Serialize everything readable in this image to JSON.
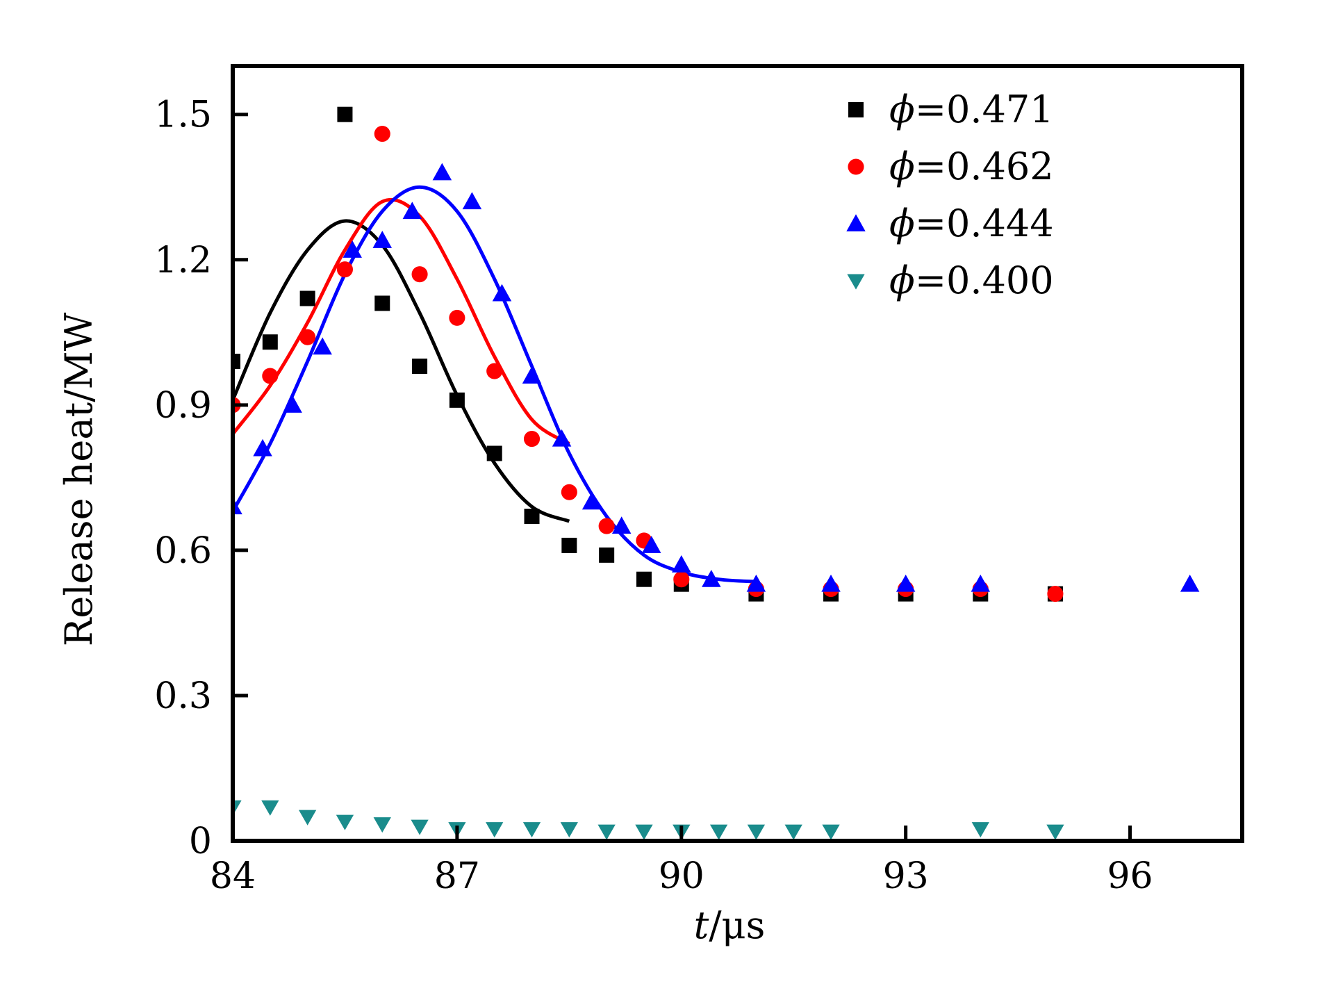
{
  "chart_data": {
    "type": "scatter",
    "xlabel_italic": "t",
    "xlabel_rest": "/μs",
    "ylabel": "Release heat/MW",
    "xlim": [
      84,
      97.5
    ],
    "ylim": [
      0,
      1.6
    ],
    "xticks": [
      84,
      87,
      90,
      93,
      96
    ],
    "xtick_labels": [
      "84",
      "87",
      "90",
      "93",
      "96"
    ],
    "yticks": [
      0,
      0.3,
      0.6,
      0.9,
      1.2,
      1.5
    ],
    "ytick_labels": [
      "0",
      "0.3",
      "0.6",
      "0.9",
      "1.2",
      "1.5"
    ],
    "grid": false,
    "legend_position": "top-right",
    "series": [
      {
        "name": "ϕ=0.471",
        "legend_symbol": "ϕ",
        "legend_value": "=0.471",
        "color": "#000000",
        "marker": "square",
        "points": [
          [
            84.0,
            0.99
          ],
          [
            84.5,
            1.03
          ],
          [
            85.0,
            1.12
          ],
          [
            85.5,
            1.5
          ],
          [
            86.0,
            1.11
          ],
          [
            86.5,
            0.98
          ],
          [
            87.0,
            0.91
          ],
          [
            87.5,
            0.8
          ],
          [
            88.0,
            0.67
          ],
          [
            88.5,
            0.61
          ],
          [
            89.0,
            0.59
          ],
          [
            89.5,
            0.54
          ],
          [
            90.0,
            0.53
          ],
          [
            91.0,
            0.51
          ],
          [
            92.0,
            0.51
          ],
          [
            93.0,
            0.51
          ],
          [
            94.0,
            0.51
          ],
          [
            95.0,
            0.51
          ]
        ],
        "fit": [
          [
            84.0,
            0.91
          ],
          [
            84.5,
            1.09
          ],
          [
            85.0,
            1.22
          ],
          [
            85.5,
            1.28
          ],
          [
            86.0,
            1.23
          ],
          [
            86.5,
            1.09
          ],
          [
            87.0,
            0.92
          ],
          [
            87.5,
            0.78
          ],
          [
            88.0,
            0.69
          ],
          [
            88.5,
            0.66
          ]
        ]
      },
      {
        "name": "ϕ=0.462",
        "legend_symbol": "ϕ",
        "legend_value": "=0.462",
        "color": "#ff0000",
        "marker": "circle",
        "points": [
          [
            84.0,
            0.9
          ],
          [
            84.5,
            0.96
          ],
          [
            85.0,
            1.04
          ],
          [
            85.5,
            1.18
          ],
          [
            86.0,
            1.46
          ],
          [
            86.5,
            1.17
          ],
          [
            87.0,
            1.08
          ],
          [
            87.5,
            0.97
          ],
          [
            88.0,
            0.83
          ],
          [
            88.5,
            0.72
          ],
          [
            89.0,
            0.65
          ],
          [
            89.5,
            0.62
          ],
          [
            90.0,
            0.54
          ],
          [
            91.0,
            0.52
          ],
          [
            92.0,
            0.52
          ],
          [
            93.0,
            0.52
          ],
          [
            94.0,
            0.52
          ],
          [
            95.0,
            0.51
          ]
        ],
        "fit": [
          [
            84.0,
            0.84
          ],
          [
            84.5,
            0.94
          ],
          [
            85.0,
            1.07
          ],
          [
            85.5,
            1.22
          ],
          [
            86.0,
            1.32
          ],
          [
            86.5,
            1.29
          ],
          [
            87.0,
            1.16
          ],
          [
            87.5,
            1.0
          ],
          [
            88.0,
            0.87
          ],
          [
            88.5,
            0.82
          ]
        ]
      },
      {
        "name": "ϕ=0.444",
        "legend_symbol": "ϕ",
        "legend_value": "=0.444",
        "color": "#0000ff",
        "marker": "triangle-up",
        "points": [
          [
            84.0,
            0.69
          ],
          [
            84.4,
            0.81
          ],
          [
            84.8,
            0.9
          ],
          [
            85.2,
            1.02
          ],
          [
            85.6,
            1.22
          ],
          [
            86.0,
            1.24
          ],
          [
            86.4,
            1.3
          ],
          [
            86.8,
            1.38
          ],
          [
            87.2,
            1.32
          ],
          [
            87.6,
            1.13
          ],
          [
            88.0,
            0.96
          ],
          [
            88.4,
            0.83
          ],
          [
            88.8,
            0.7
          ],
          [
            89.2,
            0.65
          ],
          [
            89.6,
            0.61
          ],
          [
            90.0,
            0.57
          ],
          [
            90.4,
            0.54
          ],
          [
            91.0,
            0.53
          ],
          [
            92.0,
            0.53
          ],
          [
            93.0,
            0.53
          ],
          [
            94.0,
            0.53
          ],
          [
            96.8,
            0.53
          ]
        ],
        "fit": [
          [
            84.0,
            0.68
          ],
          [
            84.5,
            0.82
          ],
          [
            85.0,
            0.99
          ],
          [
            85.5,
            1.17
          ],
          [
            86.0,
            1.3
          ],
          [
            86.5,
            1.35
          ],
          [
            87.0,
            1.3
          ],
          [
            87.5,
            1.16
          ],
          [
            88.0,
            0.98
          ],
          [
            88.5,
            0.8
          ],
          [
            89.0,
            0.67
          ],
          [
            89.5,
            0.59
          ],
          [
            90.0,
            0.555
          ],
          [
            90.5,
            0.54
          ],
          [
            91.0,
            0.535
          ]
        ]
      },
      {
        "name": "ϕ=0.400",
        "legend_symbol": "ϕ",
        "legend_value": "=0.400",
        "color": "#1a8c8c",
        "marker": "triangle-down",
        "points": [
          [
            84.0,
            0.07
          ],
          [
            84.5,
            0.07
          ],
          [
            85.0,
            0.05
          ],
          [
            85.5,
            0.04
          ],
          [
            86.0,
            0.035
          ],
          [
            86.5,
            0.03
          ],
          [
            87.0,
            0.025
          ],
          [
            87.5,
            0.025
          ],
          [
            88.0,
            0.025
          ],
          [
            88.5,
            0.025
          ],
          [
            89.0,
            0.02
          ],
          [
            89.5,
            0.02
          ],
          [
            90.0,
            0.02
          ],
          [
            90.5,
            0.02
          ],
          [
            91.0,
            0.02
          ],
          [
            91.5,
            0.02
          ],
          [
            92.0,
            0.02
          ],
          [
            94.0,
            0.025
          ],
          [
            95.0,
            0.02
          ]
        ],
        "fit": []
      }
    ]
  }
}
